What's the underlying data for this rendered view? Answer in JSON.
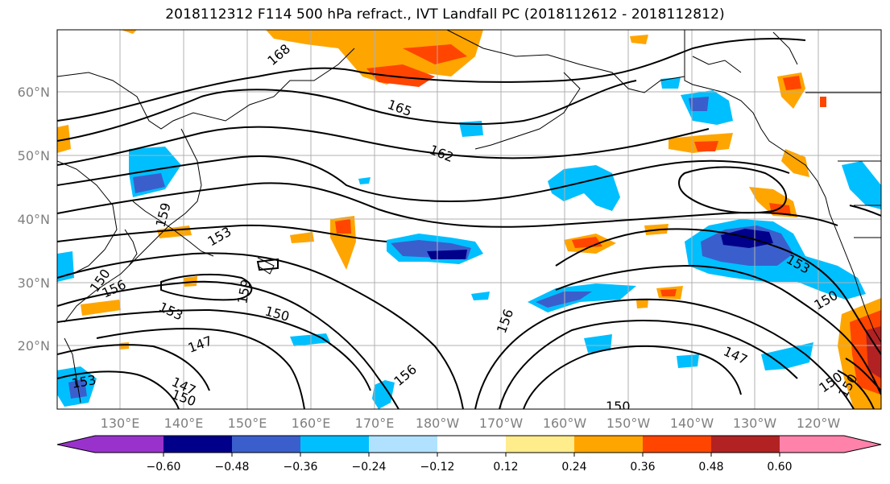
{
  "title": "2018112312 F114 500 hPa refract., IVT Landfall PC (2018112612 - 2018112812)",
  "lat_labels": [
    "20°N",
    "30°N",
    "40°N",
    "50°N",
    "60°N"
  ],
  "lon_labels": [
    "130°E",
    "140°E",
    "150°E",
    "160°E",
    "170°E",
    "180°W",
    "170°W",
    "160°W",
    "150°W",
    "140°W",
    "130°W",
    "120°W"
  ],
  "contour_labels": [
    "168",
    "165",
    "162",
    "159",
    "153",
    "150",
    "156",
    "153",
    "159",
    "150",
    "147",
    "147",
    "150",
    "153",
    "156",
    "156",
    "150",
    "147",
    "153",
    "150",
    "150",
    "150"
  ],
  "colorbar": {
    "ticks": [
      "−0.60",
      "−0.48",
      "−0.36",
      "−0.24",
      "−0.12",
      "0.12",
      "0.24",
      "0.36",
      "0.48",
      "0.60"
    ],
    "colors": [
      "#9932cc",
      "#00008b",
      "#3a5fcd",
      "#00bfff",
      "#b0e2ff",
      "#ffffff",
      "#ffec8b",
      "#ffa500",
      "#ff4500",
      "#b22222",
      "#ff82ab"
    ]
  }
}
